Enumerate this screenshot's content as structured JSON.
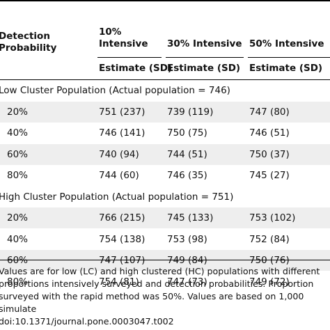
{
  "table": {
    "headers": {
      "detection": "Detection\nProbability",
      "col10": "10%\nIntensive",
      "col30": "30% Intensive",
      "col50": "50% Intensive",
      "estimate10": "Estimate (SD)",
      "estimate30": "Estimate (SD)",
      "estimate50": "Estimate (SD)"
    },
    "groups": [
      {
        "label": "Low Cluster Population (Actual population = 746)",
        "rows": [
          [
            "20%",
            "751 (237)",
            "739 (119)",
            "747 (80)"
          ],
          [
            "40%",
            "746 (141)",
            "750 (75)",
            "746 (51)"
          ],
          [
            "60%",
            "740 (94)",
            "744 (51)",
            "750 (37)"
          ],
          [
            "80%",
            "744 (60)",
            "746 (35)",
            "745 (27)"
          ]
        ]
      },
      {
        "label": "High Cluster Population (Actual population = 751)",
        "rows": [
          [
            "20%",
            "766 (215)",
            "745 (133)",
            "753 (102)"
          ],
          [
            "40%",
            "754 (138)",
            "753 (98)",
            "752 (84)"
          ],
          [
            "60%",
            "747 (107)",
            "749 (84)",
            "750 (76)"
          ],
          [
            "80%",
            "754 (81)",
            "747 (73)",
            "749 (72)"
          ]
        ]
      }
    ]
  },
  "footnote": "Values are for low (LC) and high clustered (HC) populations with different proportions intensively surveyed and detection probabilities. Proportion surveyed with the rapid method was 50%. Values are based on 1,000 simulate",
  "doi": "doi:10.1371/journal.pone.0003047.t002"
}
